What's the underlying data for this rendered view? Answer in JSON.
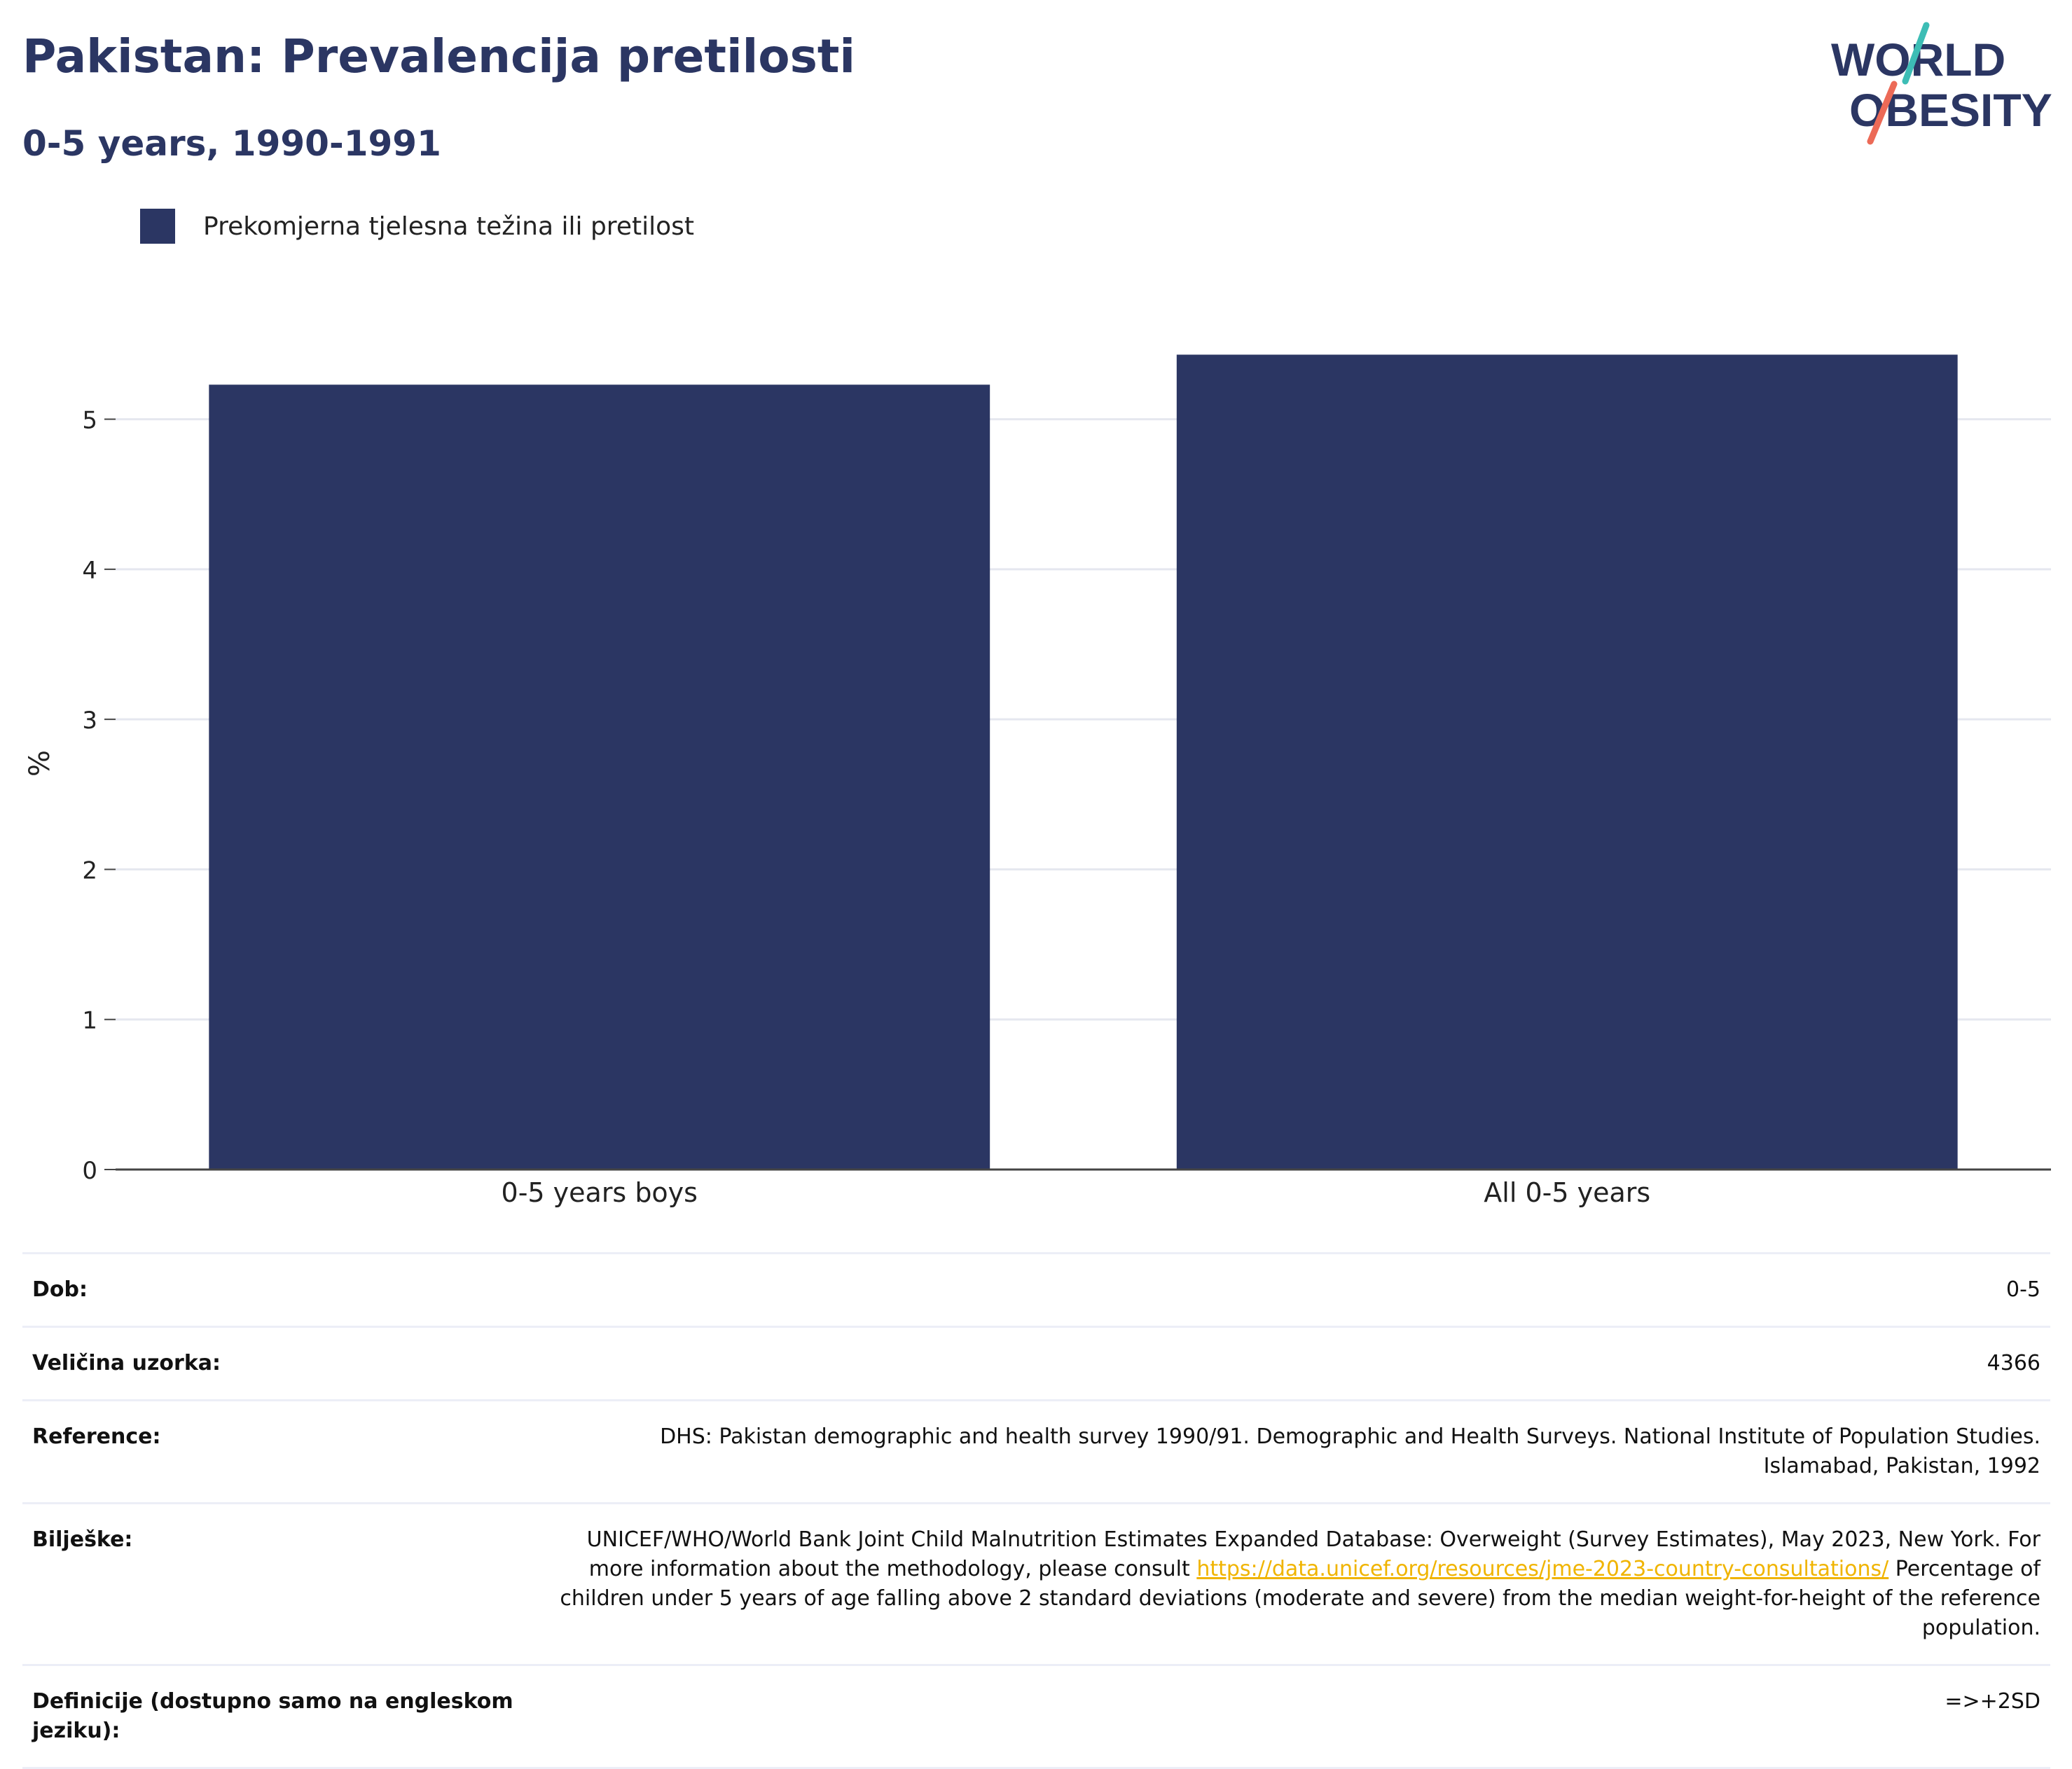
{
  "header": {
    "title": "Pakistan: Prevalencija pretilosti",
    "subtitle": "0-5 years, 1990-1991"
  },
  "logo": {
    "line1": "WORLD",
    "line2": "OBESITY"
  },
  "colors": {
    "bar": "#2b3663",
    "title": "#2b3663",
    "link": "#f0b400",
    "logo_teal": "#3dbdb5",
    "logo_red": "#ec6a57"
  },
  "chart_data": {
    "type": "bar",
    "categories": [
      "0-5 years boys",
      "All 0-5 years"
    ],
    "series": [
      {
        "name": "Prekomjerna tjelesna težina ili pretilost",
        "values": [
          5.23,
          5.43
        ]
      }
    ],
    "ylabel": "%",
    "xlabel": "",
    "ylim": [
      0,
      5.6
    ],
    "yticks": [
      0,
      1,
      2,
      3,
      4,
      5
    ],
    "grid": true,
    "legend": "top-left"
  },
  "info": {
    "dob": {
      "label": "Dob:",
      "value": "0-5"
    },
    "sample": {
      "label": "Veličina uzorka:",
      "value": "4366"
    },
    "reference": {
      "label": "Reference:",
      "value": "DHS: Pakistan demographic and health survey 1990/91. Demographic and Health Surveys. National Institute of Population Studies. Islamabad, Pakistan, 1992"
    },
    "notes": {
      "label": "Bilješke:",
      "text_before": "UNICEF/WHO/World Bank Joint Child Malnutrition Estimates Expanded Database: Overweight (Survey Estimates), May 2023, New York. For more information about the methodology, please consult ",
      "link": "https://data.unicef.org/resources/jme-2023-country-consultations/",
      "text_after": " Percentage of children under 5 years of age falling above 2 standard deviations (moderate and severe) from the median weight-for-height of the reference population."
    },
    "definitions": {
      "label": "Definicije (dostupno samo na engleskom jeziku):",
      "value": "=>+2SD"
    }
  }
}
